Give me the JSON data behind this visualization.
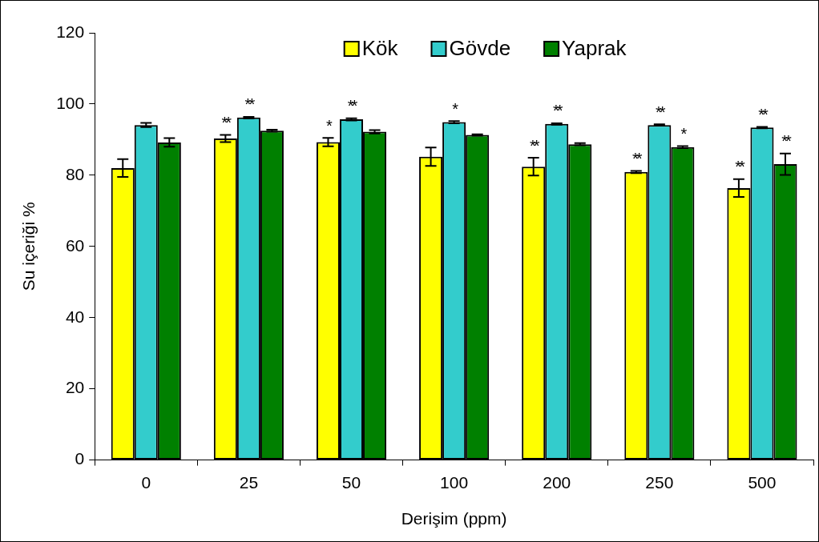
{
  "chart_data": {
    "type": "bar",
    "xlabel": "Derişim (ppm)",
    "ylabel": "Su içeriği %",
    "categories": [
      "0",
      "25",
      "50",
      "100",
      "200",
      "250",
      "500"
    ],
    "series": [
      {
        "name": "Kök",
        "color": "#ffff00",
        "values": [
          82.0,
          90.3,
          89.3,
          85.2,
          82.4,
          80.9,
          76.4
        ],
        "errors": [
          2.5,
          1.0,
          1.2,
          2.6,
          2.5,
          0.3,
          2.5
        ],
        "value_labels": [
          null,
          "**",
          "*",
          null,
          "**",
          "**",
          "**"
        ]
      },
      {
        "name": "Gövde",
        "color": "#33cccc",
        "values": [
          94.1,
          96.2,
          95.7,
          94.9,
          94.4,
          94.1,
          93.4
        ],
        "errors": [
          0.6,
          0.2,
          0.3,
          0.3,
          0.2,
          0.2,
          0.2
        ],
        "value_labels": [
          null,
          "**",
          "**",
          "*",
          "**",
          "**",
          "**"
        ]
      },
      {
        "name": "Yaprak",
        "color": "#008000",
        "values": [
          89.2,
          92.5,
          92.2,
          91.3,
          88.7,
          87.9,
          83.1
        ],
        "errors": [
          1.2,
          0.3,
          0.5,
          0.2,
          0.3,
          0.3,
          3.0
        ],
        "value_labels": [
          null,
          null,
          null,
          null,
          null,
          "*",
          "**"
        ]
      }
    ],
    "ylim": [
      0,
      120
    ],
    "yticks": [
      0,
      20,
      40,
      60,
      80,
      100,
      120
    ],
    "grid": false,
    "legend": "top"
  }
}
